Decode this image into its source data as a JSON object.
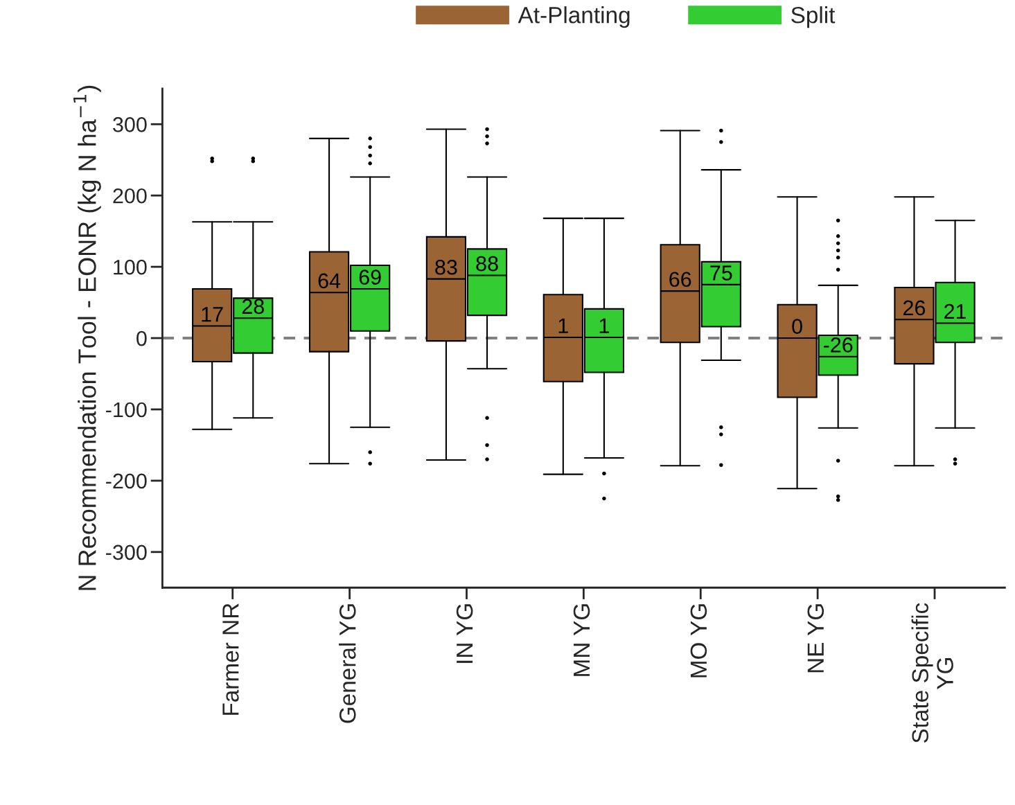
{
  "chart_data": {
    "type": "box",
    "ylabel": "N Recommendation Tool - EONR (kg N ha$^{−1}$)",
    "categories": [
      "Farmer NR",
      "General YG",
      "IN YG",
      "MN YG",
      "MO YG",
      "NE YG",
      "State Specific\nYG"
    ],
    "series": [
      {
        "name": "At-Planting",
        "color": "#9a6434",
        "value_labels": [
          "17",
          "64",
          "83",
          "1",
          "66",
          "0",
          "26"
        ],
        "boxes": [
          {
            "low": -128,
            "q1": -33,
            "median": 17,
            "q3": 69,
            "high": 163,
            "outliers": [
              248,
              252
            ]
          },
          {
            "low": -176,
            "q1": -19,
            "median": 64,
            "q3": 121,
            "high": 280
          },
          {
            "low": -171,
            "q1": -4,
            "median": 83,
            "q3": 142,
            "high": 293
          },
          {
            "low": -191,
            "q1": -61,
            "median": 1,
            "q3": 61,
            "high": 168
          },
          {
            "low": -179,
            "q1": -6,
            "median": 66,
            "q3": 131,
            "high": 291
          },
          {
            "low": -211,
            "q1": -83,
            "median": 0,
            "q3": 47,
            "high": 198
          },
          {
            "low": -179,
            "q1": -36,
            "median": 26,
            "q3": 71,
            "high": 198
          }
        ]
      },
      {
        "name": "Split",
        "color": "#33cc33",
        "value_labels": [
          "28",
          "69",
          "88",
          "1",
          "75",
          "-26",
          "21"
        ],
        "boxes": [
          {
            "low": -112,
            "q1": -21,
            "median": 28,
            "q3": 56,
            "high": 163,
            "outliers": [
              248,
              252
            ]
          },
          {
            "low": -125,
            "q1": 10,
            "median": 69,
            "q3": 102,
            "high": 226,
            "outliers": [
              280,
              268,
              256,
              245,
              -160,
              -176
            ]
          },
          {
            "low": -43,
            "q1": 32,
            "median": 88,
            "q3": 125,
            "high": 226,
            "outliers": [
              293,
              283,
              273,
              -112,
              -150,
              -170
            ]
          },
          {
            "low": -168,
            "q1": -48,
            "median": 1,
            "q3": 41,
            "high": 168,
            "outliers": [
              -190,
              -225
            ]
          },
          {
            "low": -31,
            "q1": 16,
            "median": 75,
            "q3": 107,
            "high": 236,
            "outliers": [
              291,
              275,
              -125,
              -135,
              -178
            ]
          },
          {
            "low": -126,
            "q1": -52,
            "median": -26,
            "q3": 4,
            "high": 74,
            "outliers": [
              165,
              143,
              133,
              123,
              113,
              96,
              -172,
              -222,
              -227
            ]
          },
          {
            "low": -126,
            "q1": -6,
            "median": 21,
            "q3": 78,
            "high": 165,
            "outliers": [
              -170,
              -176
            ]
          }
        ]
      }
    ],
    "ylim": [
      -350,
      350
    ],
    "yticks": [
      -300,
      -200,
      -100,
      0,
      100,
      200,
      300
    ],
    "ref_lines": [
      {
        "axis": "y",
        "value": 0,
        "color": "#808080",
        "line_style": "dashed"
      }
    ],
    "legend": "top",
    "grid": false
  }
}
